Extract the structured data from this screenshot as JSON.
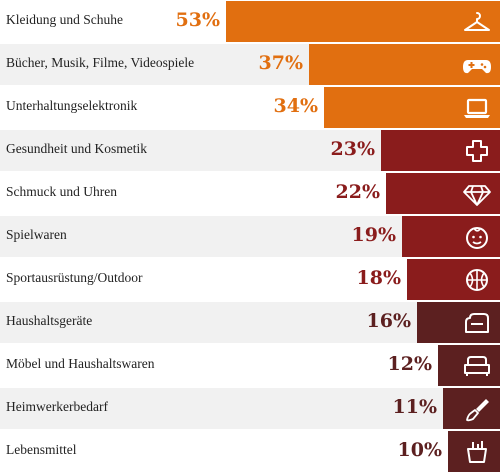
{
  "chart_data": {
    "type": "bar",
    "orientation": "horizontal",
    "categories": [
      "Kleidung und Schuhe",
      "Bücher, Musik, Filme, Videospiele",
      "Unterhaltungselektronik",
      "Gesundheit und Kosmetik",
      "Schmuck und Uhren",
      "Spielwaren",
      "Sportausrüstung/Outdoor",
      "Haushaltsgeräte",
      "Möbel und Haushaltswaren",
      "Heimwerkerbedarf",
      "Lebensmittel"
    ],
    "values": [
      53,
      37,
      34,
      23,
      22,
      19,
      18,
      16,
      12,
      11,
      10
    ],
    "labels": [
      "53%",
      "37%",
      "34%",
      "23%",
      "22%",
      "19%",
      "18%",
      "16%",
      "12%",
      "11%",
      "10%"
    ],
    "icons": [
      "hanger-icon",
      "gamepad-icon",
      "laptop-icon",
      "medical-cross-icon",
      "diamond-icon",
      "baby-face-icon",
      "basketball-icon",
      "toaster-icon",
      "sofa-icon",
      "paint-brush-icon",
      "shopping-basket-icon"
    ],
    "colors": [
      "#e16f10",
      "#e16f10",
      "#e16f10",
      "#8a1c1c",
      "#8a1c1c",
      "#8a1c1c",
      "#8a1c1c",
      "#5c2020",
      "#5c2020",
      "#5c2020",
      "#5c2020"
    ],
    "label_colors": [
      "#e16f10",
      "#e16f10",
      "#e16f10",
      "#8a1c1c",
      "#8a1c1c",
      "#8a1c1c",
      "#8a1c1c",
      "#5c2020",
      "#5c2020",
      "#5c2020",
      "#5c2020"
    ],
    "xlim": [
      0,
      53
    ],
    "grid": false,
    "legend": "none"
  }
}
